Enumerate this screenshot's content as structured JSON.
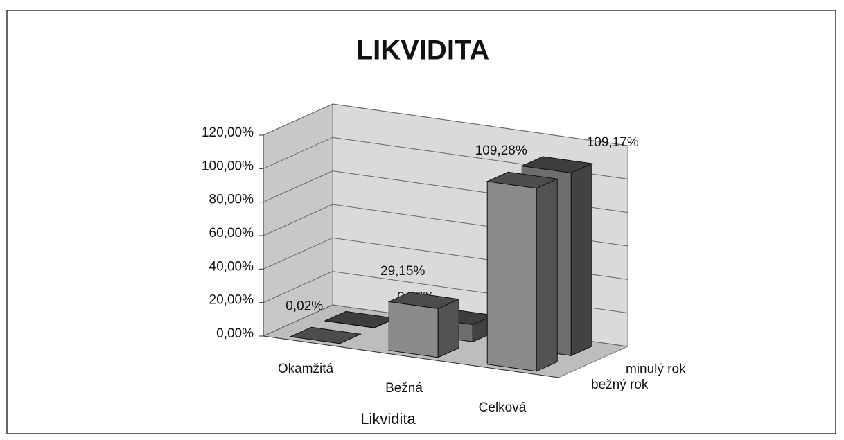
{
  "chart_data": {
    "type": "bar3d",
    "title": "LIKVIDITA",
    "x_label": "Likvidita",
    "categories": [
      "Okamžitá",
      "Bežná",
      "Celková"
    ],
    "series": [
      {
        "name": "bežný rok",
        "color": "#8a8a8a",
        "values": [
          0.02,
          29.15,
          109.28
        ],
        "value_labels": [
          "0,02%",
          "29,15%",
          "109,28%"
        ]
      },
      {
        "name": "minulý rok",
        "color": "#6e6e6e",
        "values": [
          0.17,
          10.25,
          109.17
        ],
        "value_labels": [
          "0,17%",
          "10,25%",
          "109,17%"
        ]
      }
    ],
    "ylim": [
      0,
      120
    ],
    "yticks": [
      {
        "value": 0,
        "label": "0,00%"
      },
      {
        "value": 20,
        "label": "20,00%"
      },
      {
        "value": 40,
        "label": "40,00%"
      },
      {
        "value": 60,
        "label": "60,00%"
      },
      {
        "value": 80,
        "label": "80,00%"
      },
      {
        "value": 100,
        "label": "100,00%"
      },
      {
        "value": 120,
        "label": "120,00%"
      }
    ],
    "grid": true
  }
}
